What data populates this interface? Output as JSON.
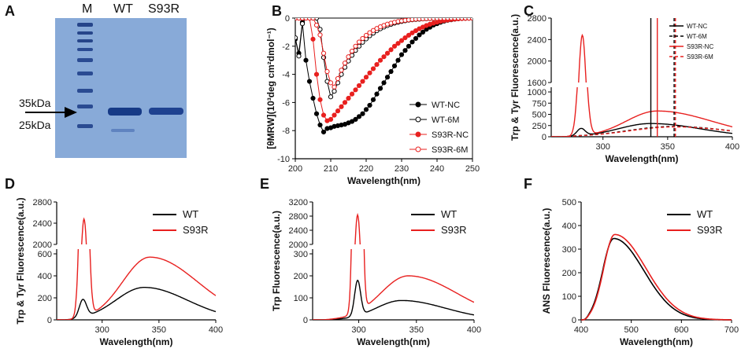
{
  "panels": {
    "A": {
      "label": "A",
      "lanes": [
        "M",
        "WT",
        "S93R"
      ],
      "markers": [
        "35kDa",
        "25kDa"
      ]
    }
  },
  "chart_data": [
    {
      "id": "B",
      "label": "B",
      "type": "line",
      "xlabel": "Wavelength(nm)",
      "ylabel": "[θMRW](10³deg cm²dmol⁻¹)",
      "xlim": [
        200,
        250
      ],
      "ylim": [
        -10,
        0
      ],
      "xticks": [
        200,
        210,
        220,
        230,
        240,
        250
      ],
      "yticks": [
        0,
        -2,
        -4,
        -6,
        -8,
        -10
      ],
      "legend_position": "right",
      "series": [
        {
          "name": "WT-NC",
          "color": "#000000",
          "marker": "filled",
          "x": [
            200,
            201,
            202,
            203,
            204,
            205,
            206,
            207,
            208,
            209,
            210,
            211,
            212,
            213,
            214,
            215,
            216,
            217,
            218,
            219,
            220,
            221,
            222,
            223,
            224,
            225,
            226,
            227,
            228,
            229,
            230,
            231,
            232,
            233,
            234,
            235,
            236,
            237,
            238,
            239,
            240,
            241,
            242,
            243,
            244,
            245,
            246,
            247,
            248,
            249,
            250
          ],
          "y": [
            -1.5,
            -2.5,
            -0.3,
            -3,
            -4.5,
            -5.7,
            -6.8,
            -7.6,
            -8.1,
            -7.85,
            -7.8,
            -7.7,
            -7.65,
            -7.6,
            -7.55,
            -7.45,
            -7.35,
            -7.2,
            -7.0,
            -6.8,
            -6.5,
            -6.2,
            -5.8,
            -5.4,
            -5.0,
            -4.6,
            -4.2,
            -3.8,
            -3.4,
            -3.0,
            -2.6,
            -2.3,
            -2.0,
            -1.7,
            -1.45,
            -1.2,
            -1.0,
            -0.8,
            -0.65,
            -0.5,
            -0.4,
            -0.3,
            -0.22,
            -0.16,
            -0.12,
            -0.08,
            -0.05,
            -0.03,
            -0.02,
            -0.01,
            0
          ]
        },
        {
          "name": "WT-6M",
          "color": "#000000",
          "marker": "open",
          "x": [
            200,
            201,
            202,
            203,
            204,
            205,
            206,
            207,
            208,
            209,
            210,
            211,
            212,
            213,
            214,
            215,
            216,
            217,
            218,
            219,
            220,
            221,
            222,
            223,
            224,
            225,
            226,
            227,
            228,
            229,
            230,
            231,
            232,
            233,
            234,
            235,
            236,
            237,
            238,
            239,
            240,
            241,
            242,
            243,
            244,
            245,
            246,
            247,
            248,
            249,
            250
          ],
          "y": [
            -1.4,
            -2.7,
            -0.4,
            0,
            0,
            0,
            0,
            -0.8,
            -2.8,
            -4.5,
            -5.6,
            -5.2,
            -4.6,
            -4.0,
            -3.5,
            -3.05,
            -2.65,
            -2.3,
            -2.0,
            -1.72,
            -1.48,
            -1.26,
            -1.07,
            -0.9,
            -0.76,
            -0.64,
            -0.53,
            -0.44,
            -0.36,
            -0.3,
            -0.24,
            -0.19,
            -0.15,
            -0.12,
            -0.1,
            -0.08,
            -0.06,
            -0.05,
            -0.04,
            -0.03,
            -0.02,
            -0.02,
            -0.01,
            -0.01,
            0,
            0,
            0,
            0,
            0,
            0,
            0
          ]
        },
        {
          "name": "S93R-NC",
          "color": "#e8201f",
          "marker": "filled",
          "x": [
            200,
            201,
            202,
            203,
            204,
            205,
            206,
            207,
            208,
            209,
            210,
            211,
            212,
            213,
            214,
            215,
            216,
            217,
            218,
            219,
            220,
            221,
            222,
            223,
            224,
            225,
            226,
            227,
            228,
            229,
            230,
            231,
            232,
            233,
            234,
            235,
            236,
            237,
            238,
            239,
            240,
            241,
            242,
            243,
            244,
            245,
            246,
            247,
            248,
            249,
            250
          ],
          "y": [
            0,
            0,
            0,
            0,
            0,
            -1.5,
            -4,
            -5.8,
            -6.9,
            -7.3,
            -7.2,
            -6.9,
            -6.6,
            -6.3,
            -6.0,
            -5.7,
            -5.4,
            -5.1,
            -4.8,
            -4.5,
            -4.2,
            -3.9,
            -3.6,
            -3.3,
            -3.0,
            -2.75,
            -2.5,
            -2.25,
            -2.0,
            -1.8,
            -1.6,
            -1.4,
            -1.22,
            -1.05,
            -0.9,
            -0.76,
            -0.64,
            -0.53,
            -0.44,
            -0.36,
            -0.29,
            -0.23,
            -0.18,
            -0.14,
            -0.1,
            -0.07,
            -0.05,
            -0.03,
            -0.02,
            -0.01,
            0
          ]
        },
        {
          "name": "S93R-6M",
          "color": "#e8201f",
          "marker": "open",
          "x": [
            200,
            201,
            202,
            203,
            204,
            205,
            206,
            207,
            208,
            209,
            210,
            211,
            212,
            213,
            214,
            215,
            216,
            217,
            218,
            219,
            220,
            221,
            222,
            223,
            224,
            225,
            226,
            227,
            228,
            229,
            230,
            231,
            232,
            233,
            234,
            235,
            236,
            237,
            238,
            239,
            240,
            241,
            242,
            243,
            244,
            245,
            246,
            247,
            248,
            249,
            250
          ],
          "y": [
            0,
            0,
            0,
            0,
            0,
            0,
            -0.5,
            -1.2,
            -2.5,
            -3.8,
            -4.6,
            -4.9,
            -4.3,
            -3.7,
            -3.2,
            -2.75,
            -2.35,
            -2.0,
            -1.7,
            -1.45,
            -1.23,
            -1.04,
            -0.88,
            -0.74,
            -0.62,
            -0.52,
            -0.43,
            -0.36,
            -0.3,
            -0.24,
            -0.2,
            -0.16,
            -0.13,
            -0.1,
            -0.08,
            -0.06,
            -0.05,
            -0.04,
            -0.03,
            -0.02,
            -0.02,
            -0.01,
            -0.01,
            0,
            0,
            0,
            0,
            0,
            0,
            0,
            0
          ]
        }
      ]
    },
    {
      "id": "C",
      "label": "C",
      "type": "line",
      "xlabel": "Wavelength(nm)",
      "ylabel": "Trp & Tyr Fluorescence(a.u.)",
      "xlim": [
        260,
        400
      ],
      "ylim": [
        0,
        2800
      ],
      "axis_break": {
        "lower": [
          0,
          1000
        ],
        "upper": [
          1600,
          2800
        ]
      },
      "yticks_lower": [
        0,
        250,
        500,
        750,
        1000
      ],
      "yticks_upper": [
        1600,
        2000,
        2400,
        2800
      ],
      "xticks": [
        300,
        350,
        400
      ],
      "legend_position": "top-right",
      "vlines": [
        {
          "x": 337,
          "color": "#000000",
          "style": "solid"
        },
        {
          "x": 342,
          "color": "#e8201f",
          "style": "solid"
        },
        {
          "x": 355,
          "color": "#000000",
          "style": "dashed"
        },
        {
          "x": 356,
          "color": "#e8201f",
          "style": "dashed"
        }
      ],
      "series": [
        {
          "name": "WT-NC",
          "color": "#000000",
          "style": "solid",
          "peak1": {
            "mu": 283,
            "amp": 160,
            "sigma": 3.2
          },
          "band": {
            "mu": 337,
            "amp": 295,
            "sl": 25,
            "sr": 38
          }
        },
        {
          "name": "WT-6M",
          "color": "#000000",
          "style": "dashed",
          "peak1": {
            "mu": 283,
            "amp": 0,
            "sigma": 3.2
          },
          "band": {
            "mu": 355,
            "amp": 230,
            "sl": 35,
            "sr": 42
          }
        },
        {
          "name": "S93R-NC",
          "color": "#e8201f",
          "style": "solid",
          "peak1": {
            "mu": 284,
            "amp": 2470,
            "sigma": 3.1
          },
          "band": {
            "mu": 342,
            "amp": 575,
            "sl": 24,
            "sr": 42
          }
        },
        {
          "name": "S93R-6M",
          "color": "#e8201f",
          "style": "dashed",
          "peak1": {
            "mu": 284,
            "amp": 0,
            "sigma": 3.1
          },
          "band": {
            "mu": 356,
            "amp": 220,
            "sl": 35,
            "sr": 42
          }
        }
      ]
    },
    {
      "id": "D",
      "label": "D",
      "type": "line",
      "xlabel": "Wavelength(nm)",
      "ylabel": "Trp & Tyr Fluorescence(a.u.)",
      "xlim": [
        260,
        400
      ],
      "ylim": [
        0,
        2800
      ],
      "axis_break": {
        "lower": [
          0,
          600
        ],
        "upper": [
          2000,
          2800
        ]
      },
      "yticks_lower": [
        0,
        200,
        400,
        600
      ],
      "yticks_upper": [
        2000,
        2400,
        2800
      ],
      "xticks": [
        300,
        350,
        400
      ],
      "legend_position": "top-right",
      "series": [
        {
          "name": "WT",
          "color": "#000000",
          "style": "solid",
          "peak1": {
            "mu": 283,
            "amp": 160,
            "sigma": 3.2
          },
          "band": {
            "mu": 337,
            "amp": 295,
            "sl": 25,
            "sr": 38
          }
        },
        {
          "name": "S93R",
          "color": "#e8201f",
          "style": "solid",
          "peak1": {
            "mu": 284,
            "amp": 2470,
            "sigma": 3.1
          },
          "band": {
            "mu": 342,
            "amp": 570,
            "sl": 24,
            "sr": 42
          }
        }
      ]
    },
    {
      "id": "E",
      "label": "E",
      "type": "line",
      "xlabel": "Wavelength(nm)",
      "ylabel": "Trp Fluorescence(a.u.)",
      "xlim": [
        260,
        400
      ],
      "ylim": [
        0,
        3200
      ],
      "axis_break": {
        "lower": [
          0,
          300
        ],
        "upper": [
          2000,
          3200
        ]
      },
      "yticks_lower": [
        0,
        100,
        200,
        300
      ],
      "yticks_upper": [
        2000,
        2400,
        2800,
        3200
      ],
      "xticks": [
        300,
        350,
        400
      ],
      "legend_position": "top-right",
      "series": [
        {
          "name": "WT",
          "color": "#000000",
          "style": "solid",
          "peak1": {
            "mu": 299,
            "amp": 160,
            "sigma": 2.6
          },
          "band": {
            "mu": 337,
            "amp": 88,
            "sl": 22,
            "sr": 38
          }
        },
        {
          "name": "S93R",
          "color": "#e8201f",
          "style": "solid",
          "peak1": {
            "mu": 299,
            "amp": 2800,
            "sigma": 2.6
          },
          "band": {
            "mu": 343,
            "amp": 200,
            "sl": 24,
            "sr": 42
          }
        }
      ]
    },
    {
      "id": "F",
      "label": "F",
      "type": "line",
      "xlabel": "Wavelength(nm)",
      "ylabel": "ANS Fluorescence(a.u.)",
      "xlim": [
        400,
        700
      ],
      "ylim": [
        0,
        500
      ],
      "xticks": [
        400,
        500,
        600,
        700
      ],
      "yticks": [
        0,
        100,
        200,
        300,
        400,
        500
      ],
      "legend_position": "top-right",
      "series": [
        {
          "name": "WT",
          "color": "#000000",
          "style": "solid",
          "band": {
            "mu": 465,
            "amp": 345,
            "sl": 22,
            "sr": 60
          }
        },
        {
          "name": "S93R",
          "color": "#e8201f",
          "style": "solid",
          "band": {
            "mu": 467,
            "amp": 362,
            "sl": 22,
            "sr": 62
          }
        }
      ]
    }
  ]
}
